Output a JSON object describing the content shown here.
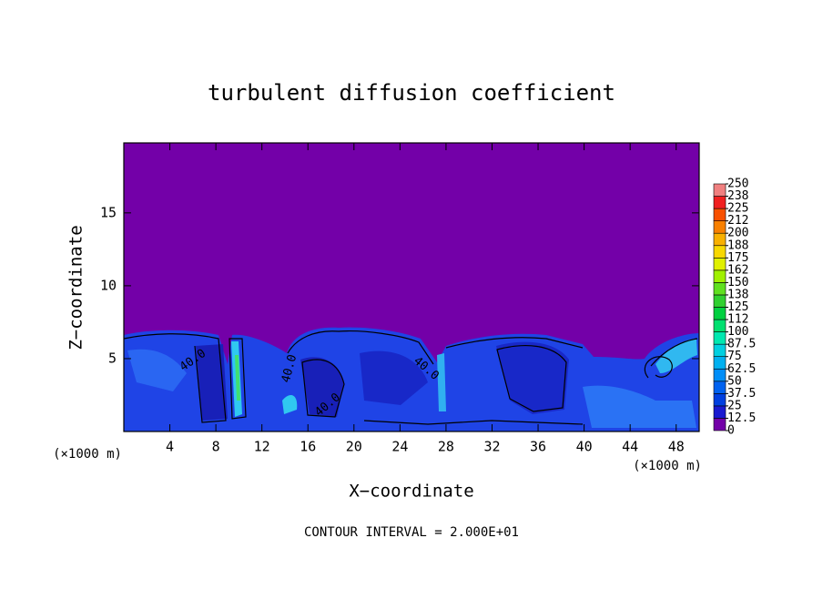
{
  "chart_data": {
    "type": "contour",
    "title": "turbulent diffusion coefficient",
    "xlabel": "X−coordinate",
    "ylabel": "Z−coordinate",
    "xunit": "(×1000 m)",
    "yunit": "(×1000 m)",
    "footnote": "CONTOUR INTERVAL = 2.000E+01",
    "xlim": [
      0,
      50
    ],
    "ylim": [
      0,
      19.8
    ],
    "xticks": [
      4,
      8,
      12,
      16,
      20,
      24,
      28,
      32,
      36,
      40,
      44,
      48
    ],
    "yticks": [
      5,
      10,
      15
    ],
    "contour_labels": [
      "40.0",
      "40.0",
      "40.0",
      "40.0"
    ],
    "colorbar": {
      "levels": [
        0,
        12.5,
        25,
        37.5,
        50,
        62.5,
        75,
        87.5,
        100,
        {
          "value": 112.5,
          "label": "112"
        },
        125,
        {
          "value": 137.5,
          "label": "138"
        },
        150,
        {
          "value": 162.5,
          "label": "162"
        },
        175,
        {
          "value": 187.5,
          "label": "188"
        },
        200,
        {
          "value": 212.5,
          "label": "212"
        },
        225,
        {
          "value": 237.5,
          "label": "238"
        },
        250
      ],
      "colors": [
        "#7300a8",
        "#1a1ad0",
        "#0040e0",
        "#0062f0",
        "#008ef8",
        "#00b0f0",
        "#00d0e0",
        "#00e8b0",
        "#00e070",
        "#00d040",
        "#30d030",
        "#60e020",
        "#a0f000",
        "#e0f000",
        "#f8d800",
        "#f8b000",
        "#f88000",
        "#f85000",
        "#f02020",
        "#f08080"
      ]
    }
  }
}
